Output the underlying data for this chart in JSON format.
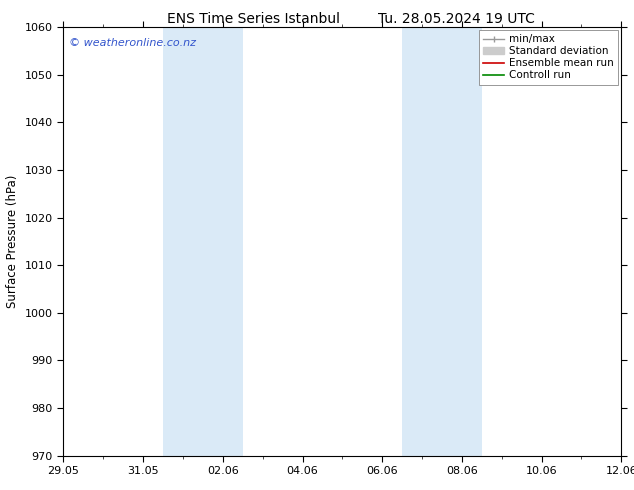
{
  "title_left": "ENS Time Series Istanbul",
  "title_right": "Tu. 28.05.2024 19 UTC",
  "ylabel": "Surface Pressure (hPa)",
  "ylim": [
    970,
    1060
  ],
  "yticks": [
    970,
    980,
    990,
    1000,
    1010,
    1020,
    1030,
    1040,
    1050,
    1060
  ],
  "xlim_days": [
    0,
    14
  ],
  "xtick_labels": [
    "29.05",
    "31.05",
    "02.06",
    "04.06",
    "06.06",
    "08.06",
    "10.06",
    "12.06"
  ],
  "xtick_positions": [
    0,
    2,
    4,
    6,
    8,
    10,
    12,
    14
  ],
  "shaded_bands": [
    {
      "xstart": 2.5,
      "xend": 4.5
    },
    {
      "xstart": 8.5,
      "xend": 10.5
    }
  ],
  "band_color": "#daeaf7",
  "watermark": "© weatheronline.co.nz",
  "bg_color": "#ffffff",
  "plot_bg_color": "#ffffff",
  "title_fontsize": 10,
  "tick_fontsize": 8,
  "ylabel_fontsize": 8.5,
  "watermark_color": "#3355cc",
  "legend_fontsize": 7.5,
  "minmax_color": "#999999",
  "stddev_color": "#cccccc",
  "ensemble_color": "#cc0000",
  "control_color": "#008800"
}
